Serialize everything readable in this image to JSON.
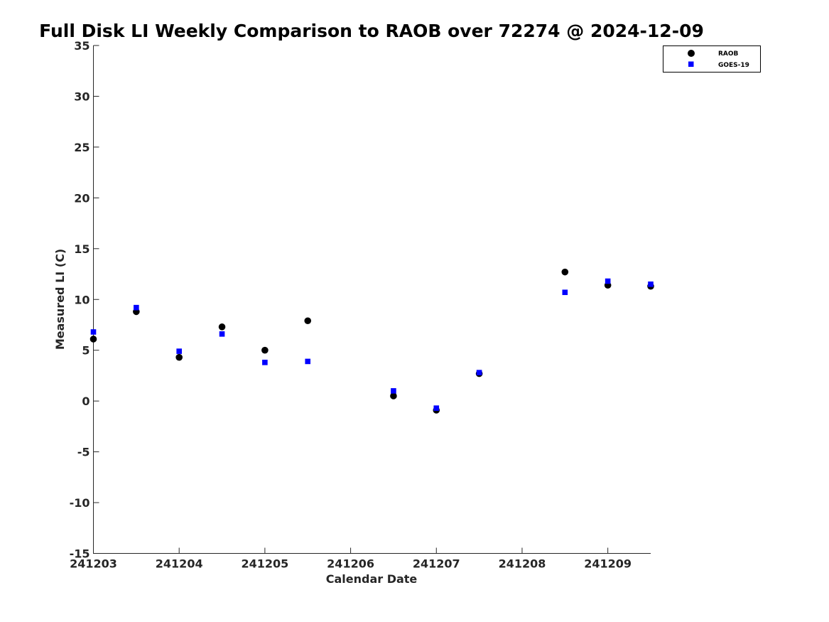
{
  "chart_data": {
    "type": "scatter",
    "title": "Full Disk LI Weekly Comparison to RAOB over 72274 @ 2024-12-09",
    "xlabel": "Calendar Date",
    "ylabel": "Measured LI (C)",
    "xlim": [
      "2024-12-03",
      "2024-12-09 12:00"
    ],
    "ylim": [
      -15,
      35
    ],
    "x_tick_labels": [
      "241203",
      "241204",
      "241205",
      "241206",
      "241207",
      "241208",
      "241209"
    ],
    "y_ticks": [
      -15,
      -10,
      -5,
      0,
      5,
      10,
      15,
      20,
      25,
      30,
      35
    ],
    "grid": false,
    "legend_position": "top-right",
    "series": [
      {
        "name": "RAOB",
        "marker": "circle",
        "color": "#000000",
        "points": [
          {
            "x": "2024-12-03 00:00",
            "y": 6.1
          },
          {
            "x": "2024-12-03 12:00",
            "y": 8.8
          },
          {
            "x": "2024-12-04 00:00",
            "y": 4.3
          },
          {
            "x": "2024-12-04 12:00",
            "y": 7.3
          },
          {
            "x": "2024-12-05 00:00",
            "y": 5.0
          },
          {
            "x": "2024-12-05 12:00",
            "y": 7.9
          },
          {
            "x": "2024-12-06 12:00",
            "y": 0.5
          },
          {
            "x": "2024-12-07 00:00",
            "y": -0.9
          },
          {
            "x": "2024-12-07 12:00",
            "y": 2.7
          },
          {
            "x": "2024-12-08 12:00",
            "y": 12.7
          },
          {
            "x": "2024-12-09 00:00",
            "y": 11.4
          },
          {
            "x": "2024-12-09 12:00",
            "y": 11.3
          }
        ]
      },
      {
        "name": "GOES-19",
        "marker": "square",
        "color": "#0000ff",
        "points": [
          {
            "x": "2024-12-03 00:00",
            "y": 6.8
          },
          {
            "x": "2024-12-03 12:00",
            "y": 9.2
          },
          {
            "x": "2024-12-04 00:00",
            "y": 4.9
          },
          {
            "x": "2024-12-04 12:00",
            "y": 6.6
          },
          {
            "x": "2024-12-05 00:00",
            "y": 3.8
          },
          {
            "x": "2024-12-05 12:00",
            "y": 3.9
          },
          {
            "x": "2024-12-06 12:00",
            "y": 1.0
          },
          {
            "x": "2024-12-07 00:00",
            "y": -0.7
          },
          {
            "x": "2024-12-07 12:00",
            "y": 2.8
          },
          {
            "x": "2024-12-08 12:00",
            "y": 10.7
          },
          {
            "x": "2024-12-09 00:00",
            "y": 11.8
          },
          {
            "x": "2024-12-09 12:00",
            "y": 11.5
          }
        ]
      }
    ]
  }
}
